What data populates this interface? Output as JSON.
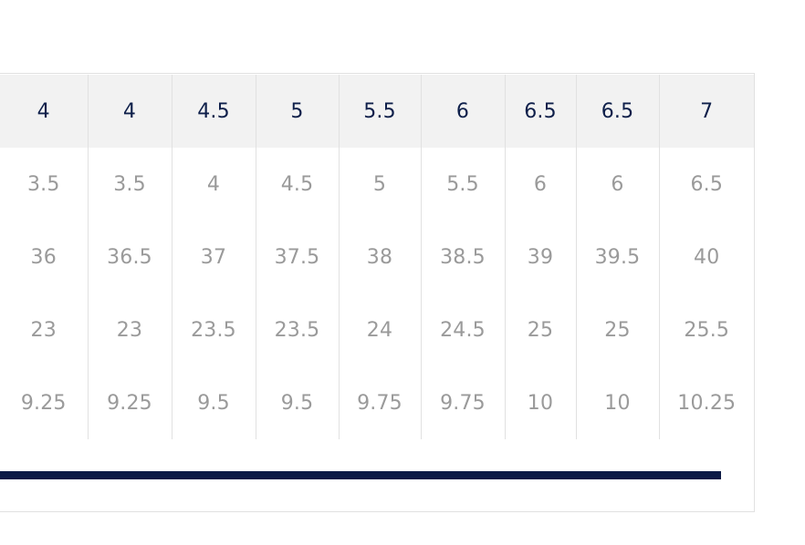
{
  "size_table": {
    "header": [
      "4",
      "4",
      "4.5",
      "5",
      "5.5",
      "6",
      "6.5",
      "6.5",
      "7"
    ],
    "rows": [
      [
        "3.5",
        "3.5",
        "4",
        "4.5",
        "5",
        "5.5",
        "6",
        "6",
        "6.5"
      ],
      [
        "36",
        "36.5",
        "37",
        "37.5",
        "38",
        "38.5",
        "39",
        "39.5",
        "40"
      ],
      [
        "23",
        "23",
        "23.5",
        "23.5",
        "24",
        "24.5",
        "25",
        "25",
        "25.5"
      ],
      [
        "9.25",
        "9.25",
        "9.5",
        "9.5",
        "9.75",
        "9.75",
        "10",
        "10",
        "10.25"
      ]
    ]
  },
  "colors": {
    "header_text": "#0e1f4a",
    "body_text": "#9a9a9a",
    "header_bg": "#f2f2f2",
    "scrollbar": "#0c1a45"
  }
}
